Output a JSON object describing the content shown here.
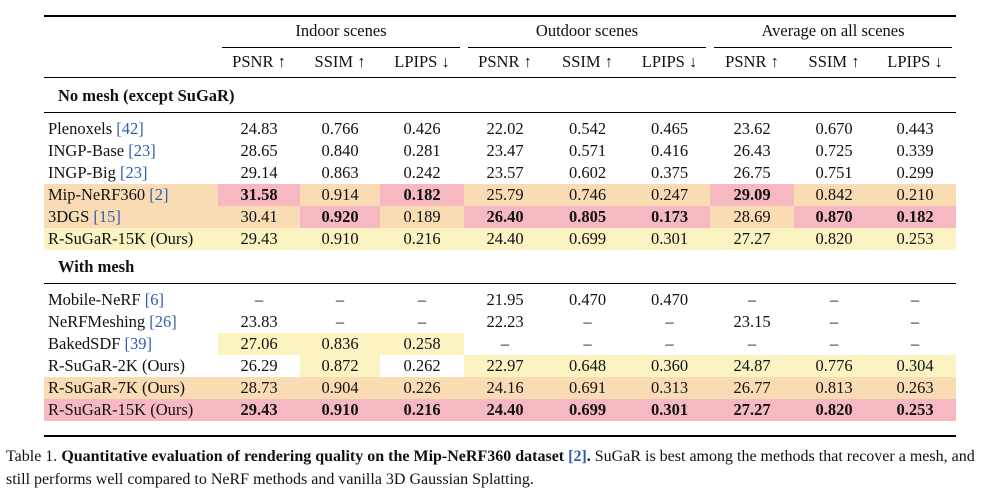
{
  "header": {
    "groups": [
      "Indoor scenes",
      "Outdoor scenes",
      "Average on all scenes"
    ],
    "metrics": [
      "PSNR ↑",
      "SSIM ↑",
      "LPIPS ↓",
      "PSNR ↑",
      "SSIM ↑",
      "LPIPS ↓",
      "PSNR ↑",
      "SSIM ↑",
      "LPIPS ↓"
    ]
  },
  "sections": [
    {
      "title": "No mesh (except SuGaR)",
      "rows": [
        {
          "name": "Plenoxels ",
          "ref": "[42]",
          "values": [
            "24.83",
            "0.766",
            "0.426",
            "22.02",
            "0.542",
            "0.465",
            "23.62",
            "0.670",
            "0.443"
          ],
          "hl": [
            "",
            "",
            "",
            "",
            "",
            "",
            "",
            "",
            ""
          ]
        },
        {
          "name": "INGP-Base ",
          "ref": "[23]",
          "values": [
            "28.65",
            "0.840",
            "0.281",
            "23.47",
            "0.571",
            "0.416",
            "26.43",
            "0.725",
            "0.339"
          ],
          "hl": [
            "",
            "",
            "",
            "",
            "",
            "",
            "",
            "",
            ""
          ]
        },
        {
          "name": "INGP-Big ",
          "ref": "[23]",
          "values": [
            "29.14",
            "0.863",
            "0.242",
            "23.57",
            "0.602",
            "0.375",
            "26.75",
            "0.751",
            "0.299"
          ],
          "hl": [
            "",
            "",
            "",
            "",
            "",
            "",
            "",
            "",
            ""
          ]
        },
        {
          "name": "Mip-NeRF360 ",
          "ref": "[2]",
          "values": [
            "31.58",
            "0.914",
            "0.182",
            "25.79",
            "0.746",
            "0.247",
            "29.09",
            "0.842",
            "0.210"
          ],
          "hl": [
            "r",
            "o",
            "r",
            "o",
            "o",
            "o",
            "r",
            "o",
            "o"
          ],
          "bold": [
            true,
            false,
            true,
            false,
            false,
            false,
            true,
            false,
            false
          ]
        },
        {
          "name": "3DGS ",
          "ref": "[15]",
          "values": [
            "30.41",
            "0.920",
            "0.189",
            "26.40",
            "0.805",
            "0.173",
            "28.69",
            "0.870",
            "0.182"
          ],
          "hl": [
            "o",
            "r",
            "o",
            "r",
            "r",
            "r",
            "o",
            "r",
            "r"
          ],
          "bold": [
            false,
            true,
            false,
            true,
            true,
            true,
            false,
            true,
            true
          ]
        },
        {
          "name": "R-SuGaR-15K (Ours)",
          "ref": "",
          "values": [
            "29.43",
            "0.910",
            "0.216",
            "24.40",
            "0.699",
            "0.301",
            "27.27",
            "0.820",
            "0.253"
          ],
          "hl": [
            "y",
            "y",
            "y",
            "y",
            "y",
            "y",
            "y",
            "y",
            "y"
          ]
        }
      ]
    },
    {
      "title": "With mesh",
      "rows": [
        {
          "name": "Mobile-NeRF ",
          "ref": "[6]",
          "values": [
            "–",
            "–",
            "–",
            "21.95",
            "0.470",
            "0.470",
            "–",
            "–",
            "–"
          ],
          "hl": [
            "",
            "",
            "",
            "",
            "",
            "",
            "",
            "",
            ""
          ]
        },
        {
          "name": "NeRFMeshing ",
          "ref": "[26]",
          "values": [
            "23.83",
            "–",
            "–",
            "22.23",
            "–",
            "–",
            "23.15",
            "–",
            "–"
          ],
          "hl": [
            "",
            "",
            "",
            "",
            "",
            "",
            "",
            "",
            ""
          ]
        },
        {
          "name": "BakedSDF ",
          "ref": "[39]",
          "values": [
            "27.06",
            "0.836",
            "0.258",
            "–",
            "–",
            "–",
            "–",
            "–",
            "–"
          ],
          "hl": [
            "y",
            "y",
            "y",
            "",
            "",
            "",
            "",
            "",
            ""
          ]
        },
        {
          "name": "R-SuGaR-2K (Ours)",
          "ref": "",
          "values": [
            "26.29",
            "0.872",
            "0.262",
            "22.97",
            "0.648",
            "0.360",
            "24.87",
            "0.776",
            "0.304"
          ],
          "hl": [
            "",
            "y",
            "",
            "y",
            "y",
            "y",
            "y",
            "y",
            "y"
          ]
        },
        {
          "name": "R-SuGaR-7K (Ours)",
          "ref": "",
          "values": [
            "28.73",
            "0.904",
            "0.226",
            "24.16",
            "0.691",
            "0.313",
            "26.77",
            "0.813",
            "0.263"
          ],
          "hl": [
            "o",
            "o",
            "o",
            "o",
            "o",
            "o",
            "o",
            "o",
            "o"
          ]
        },
        {
          "name": "R-SuGaR-15K (Ours)",
          "ref": "",
          "values": [
            "29.43",
            "0.910",
            "0.216",
            "24.40",
            "0.699",
            "0.301",
            "27.27",
            "0.820",
            "0.253"
          ],
          "hl": [
            "r",
            "r",
            "r",
            "r",
            "r",
            "r",
            "r",
            "r",
            "r"
          ],
          "bold": [
            true,
            true,
            true,
            true,
            true,
            true,
            true,
            true,
            true
          ]
        }
      ]
    }
  ],
  "caption": {
    "label": "Table 1. ",
    "bold": "Quantitative evaluation of rendering quality on the Mip-NeRF360 dataset ",
    "bold_ref": "[2]",
    "bold_end": ".",
    "text": " SuGaR is best among the methods that recover a mesh, and still performs well compared to NeRF methods and vanilla 3D Gaussian Splatting."
  },
  "colors": {
    "best": "#f7b9c1",
    "second": "#fadcb4",
    "third": "#fbf3c2",
    "ref": "#2f5fb0"
  }
}
